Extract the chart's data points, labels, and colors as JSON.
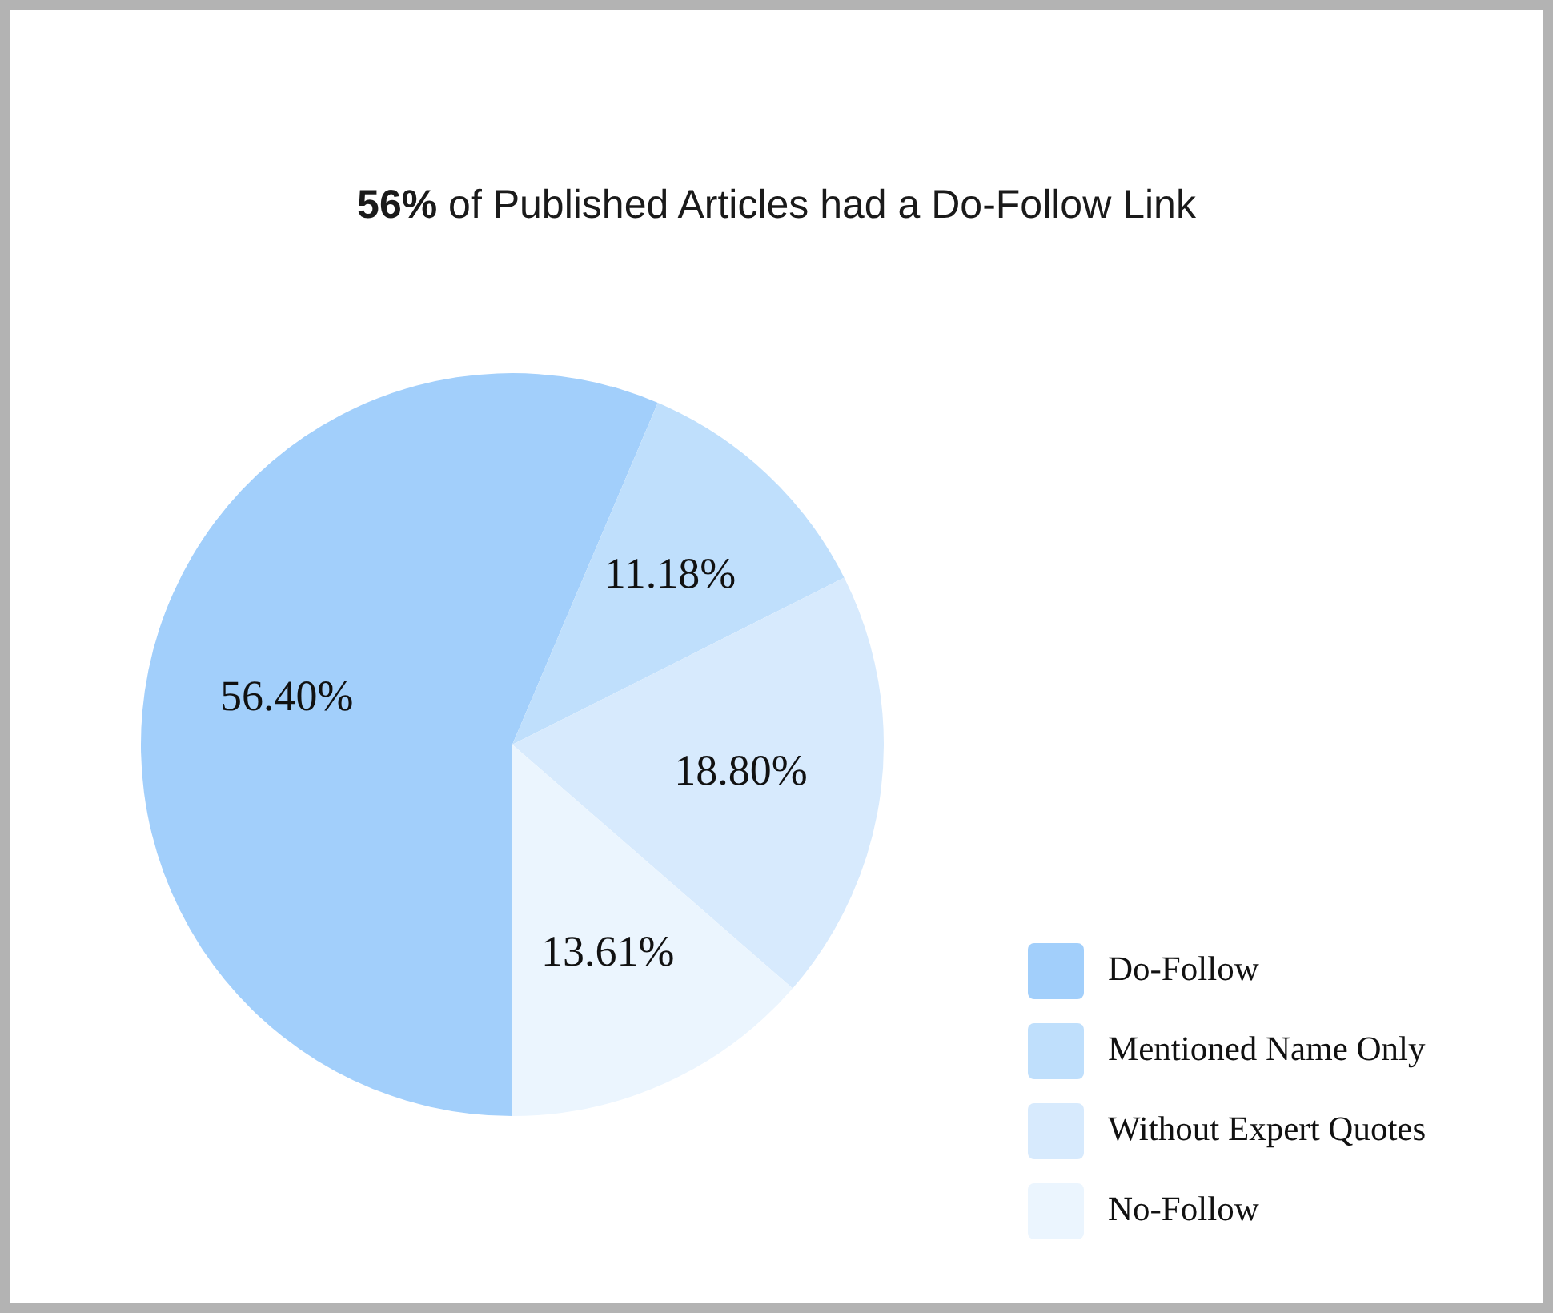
{
  "chart_data": {
    "type": "pie",
    "title": "56% of Published Articles had a Do-Follow Link",
    "categories": [
      "Do-Follow",
      "Mentioned Name Only",
      "Without Expert Quotes",
      "No-Follow"
    ],
    "values": [
      56.4,
      11.18,
      18.8,
      13.61
    ],
    "value_labels": [
      "56.40%",
      "11.18%",
      "18.80%",
      "13.61%"
    ],
    "colors": [
      "#a2cffb",
      "#bfdffc",
      "#d7eafd",
      "#ebf5fe"
    ],
    "legend": "bottom right"
  }
}
